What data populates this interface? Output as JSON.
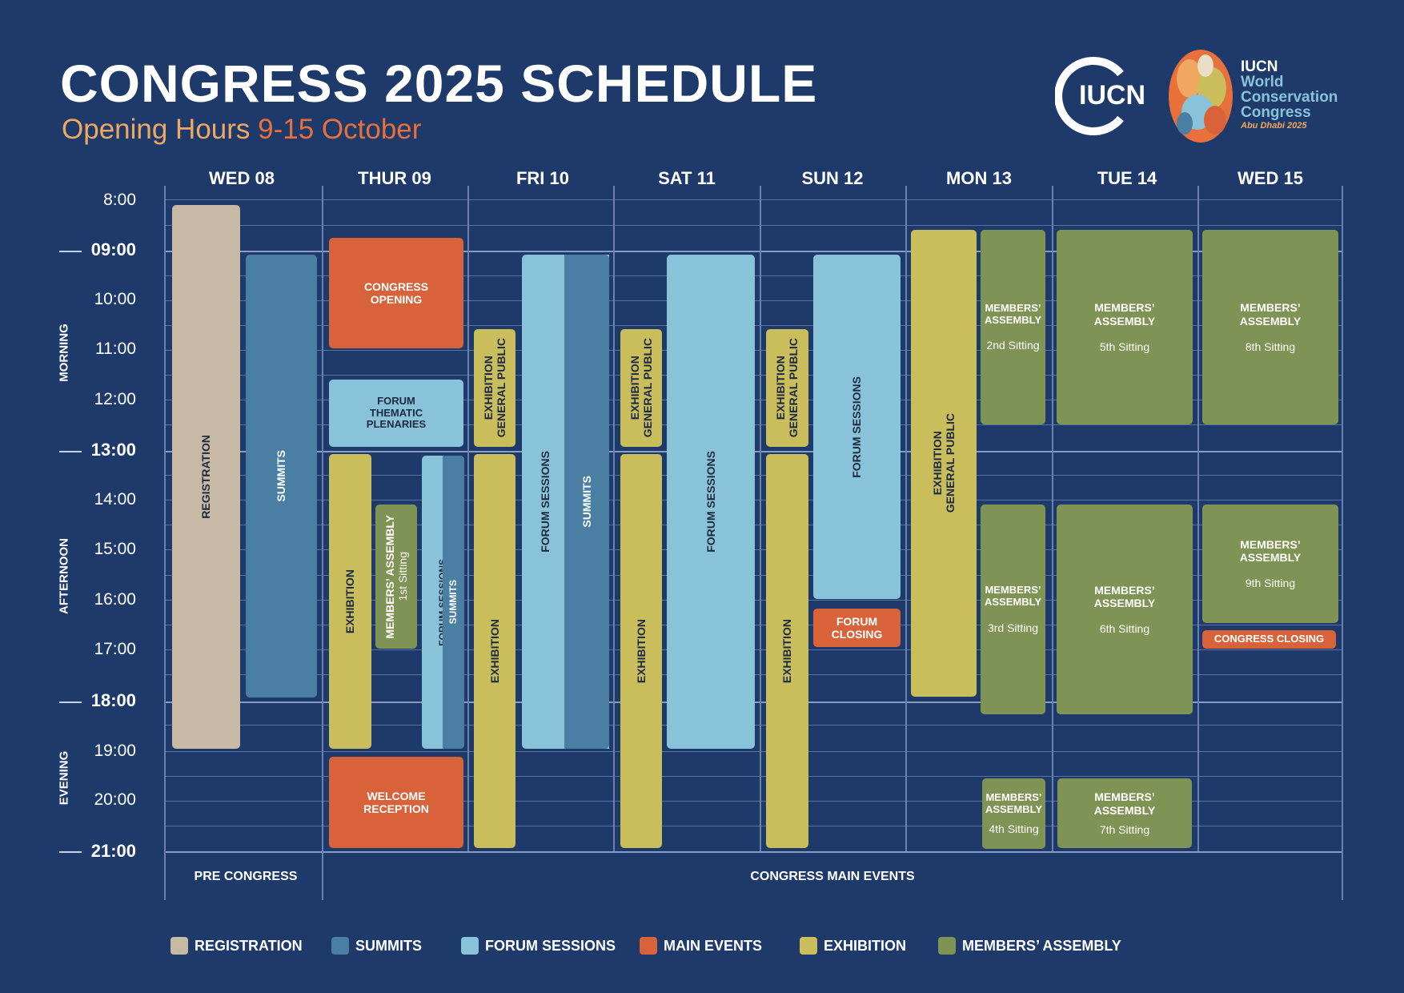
{
  "header": {
    "title": "CONGRESS 2025 SCHEDULE",
    "subtitle_prefix": "Opening Hours",
    "subtitle_dates": "9-15 October"
  },
  "logos": {
    "iucn": "IUCN",
    "wcc_line1": "IUCN",
    "wcc_line2": "World",
    "wcc_line3": "Conservation",
    "wcc_line4": "Congress",
    "wcc_line5": "Abu Dhabi 2025"
  },
  "days": [
    "WED 08",
    "THUR 09",
    "FRI 10",
    "SAT 11",
    "SUN 12",
    "MON 13",
    "TUE 14",
    "WED 15"
  ],
  "times": [
    "8:00",
    "09:00",
    "10:00",
    "11:00",
    "12:00",
    "13:00",
    "14:00",
    "15:00",
    "16:00",
    "17:00",
    "18:00",
    "19:00",
    "20:00",
    "21:00"
  ],
  "periods": {
    "morning": "MORNING",
    "afternoon": "AFTERNOON",
    "evening": "EVENING"
  },
  "footer": {
    "pre": "PRE CONGRESS",
    "main": "CONGRESS MAIN EVENTS"
  },
  "events": {
    "registration": "REGISTRATION",
    "summits": "SUMMITS",
    "congress_opening": "CONGRESS OPENING",
    "forum_thematic_plenaries": "FORUM THEMATIC PLENARIES",
    "exhibition": "EXHIBITION",
    "general_public": "GENERAL PUBLIC",
    "members_assembly": "MEMBERS’ ASSEMBLY",
    "forum_sessions": "FORUM SESSIONS",
    "welcome_reception": "WELCOME RECEPTION",
    "forum_closing": "FORUM CLOSING",
    "congress_closing": "CONGRESS CLOSING",
    "sittings": [
      "1st Sitting",
      "2nd Sitting",
      "3rd Sitting",
      "4th Sitting",
      "5th Sitting",
      "6th Sitting",
      "7th Sitting",
      "8th Sitting",
      "9th Sitting"
    ]
  },
  "legend": [
    {
      "label": "REGISTRATION",
      "color": "#c7b9a3"
    },
    {
      "label": "SUMMITS",
      "color": "#4a7fa3"
    },
    {
      "label": "FORUM SESSIONS",
      "color": "#88c3d9"
    },
    {
      "label": "MAIN EVENTS",
      "color": "#d8633a"
    },
    {
      "label": "EXHIBITION",
      "color": "#c9bd5c"
    },
    {
      "label": "MEMBERS’ ASSEMBLY",
      "color": "#7f9355"
    }
  ],
  "colors": {
    "background": "#1e3a6b",
    "registration": "#c7b9a3",
    "summits": "#4a7fa3",
    "forum": "#88c3d9",
    "main_events": "#d8633a",
    "exhibition": "#c9bd5c",
    "members_assembly": "#7f9355",
    "subtitle": "#f0a860",
    "subtitle_dates": "#e8703a"
  }
}
